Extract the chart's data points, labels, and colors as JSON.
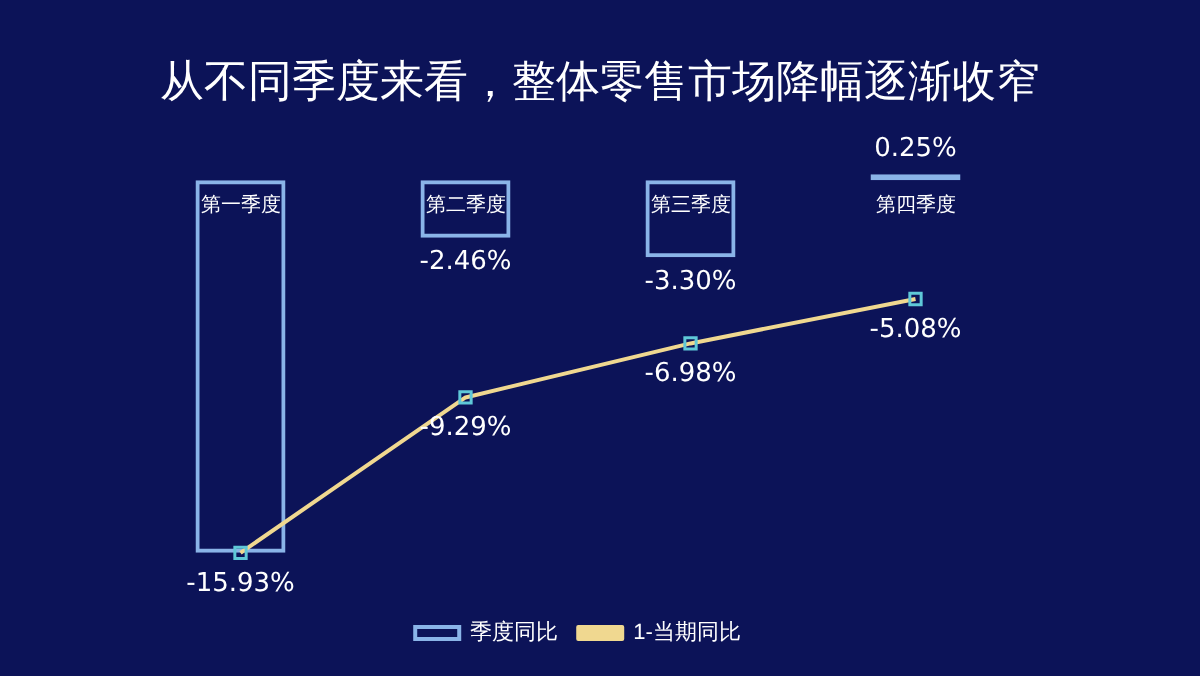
{
  "chart_data": {
    "type": "bar",
    "title": "从不同季度来看，整体零售市场降幅逐渐收窄",
    "categories": [
      "第一季度",
      "第二季度",
      "第三季度",
      "第四季度"
    ],
    "legend": "bottom",
    "marker": "square",
    "series": [
      {
        "name": "季度同比",
        "color": "#8ab4e8",
        "values": [
          -15.93,
          -2.46,
          -3.3,
          0.25
        ],
        "value_labels": [
          null,
          "-2.46%",
          "-3.30%",
          "0.25%"
        ]
      },
      {
        "name": "1-当期同比",
        "type": "line",
        "color": "#f0d890",
        "values": [
          -15.93,
          -9.29,
          -6.98,
          -5.08
        ],
        "value_labels": [
          "-15.93%",
          "-9.29%",
          "-6.98%",
          "-5.08%"
        ]
      }
    ]
  }
}
